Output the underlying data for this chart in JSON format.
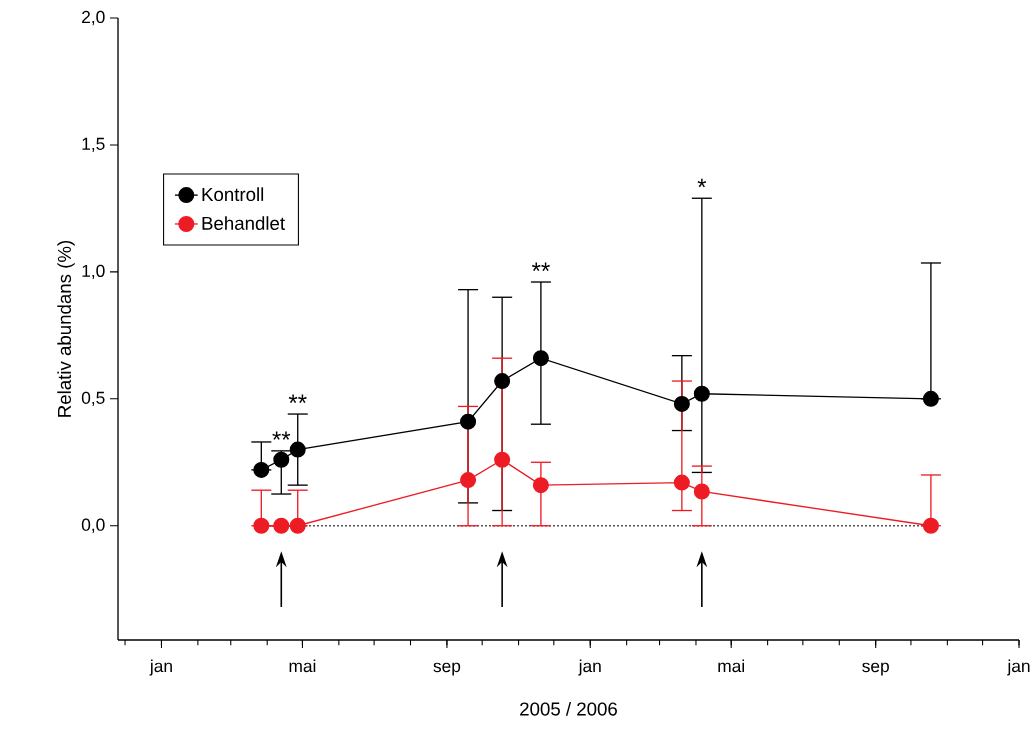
{
  "chart_data": {
    "type": "line",
    "xlabel": "2005 / 2006",
    "ylabel": "Relativ abundans (%)",
    "series": [
      {
        "name": "Kontroll",
        "color": "#000000",
        "x": [
          "2005-03-27",
          "2005-04-13",
          "2005-04-27",
          "2005-09-19",
          "2005-10-18",
          "2005-11-20",
          "2006-03-20",
          "2006-04-06",
          "2006-10-18"
        ],
        "values": [
          0.22,
          0.26,
          0.3,
          0.41,
          0.57,
          0.66,
          0.48,
          0.52,
          0.5
        ],
        "errors": [
          [
            0.22,
            0.33
          ],
          [
            0.125,
            0.295
          ],
          [
            0.16,
            0.44
          ],
          [
            0.09,
            0.93
          ],
          [
            0.06,
            0.9
          ],
          [
            0.4,
            0.96
          ],
          [
            0.375,
            0.67
          ],
          [
            0.21,
            1.29
          ],
          [
            0.5,
            1.035
          ]
        ]
      },
      {
        "name": "Behandlet",
        "color": "#ed1c24",
        "x": [
          "2005-03-27",
          "2005-04-13",
          "2005-04-27",
          "2005-09-19",
          "2005-10-18",
          "2005-11-20",
          "2006-03-20",
          "2006-04-06",
          "2006-10-18"
        ],
        "values": [
          0,
          0,
          0,
          0.18,
          0.26,
          0.16,
          0.17,
          0.135,
          0
        ],
        "errors": [
          [
            0,
            0.14
          ],
          null,
          [
            0,
            0.14
          ],
          [
            0,
            0.47
          ],
          [
            0,
            0.66
          ],
          [
            0,
            0.25
          ],
          [
            0.06,
            0.57
          ],
          [
            0,
            0.235
          ],
          [
            0,
            0.2
          ]
        ]
      }
    ],
    "xlim": [
      "2004-11-25",
      "2007-01-01"
    ],
    "xticks": [
      {
        "value": "2005-01-01",
        "label": "jan"
      },
      {
        "value": "2005-05-01",
        "label": "mai"
      },
      {
        "value": "2005-09-01",
        "label": "sep"
      },
      {
        "value": "2006-01-01",
        "label": "jan"
      },
      {
        "value": "2006-05-01",
        "label": "mai"
      },
      {
        "value": "2006-09-01",
        "label": "sep"
      },
      {
        "value": "2007-01-01",
        "label": "jan"
      }
    ],
    "ylim": [
      -0.45,
      2.0
    ],
    "yticks": [
      {
        "value": 0,
        "label": "0,0"
      },
      {
        "value": 0.5,
        "label": "0,5"
      },
      {
        "value": 1.0,
        "label": "1,0"
      },
      {
        "value": 1.5,
        "label": "1,5"
      },
      {
        "value": 2.0,
        "label": "2,0"
      }
    ],
    "ref_lines": [
      {
        "axis": "y",
        "value": 0,
        "line_style": "dotted",
        "color": "#000000"
      }
    ],
    "annotations": [
      {
        "text": "**",
        "x": "2005-04-13",
        "y": 0.295
      },
      {
        "text": "**",
        "x": "2005-04-27",
        "y": 0.44
      },
      {
        "text": "**",
        "x": "2005-11-20",
        "y": 0.96
      },
      {
        "text": "*",
        "x": "2006-04-06",
        "y": 1.29
      }
    ],
    "marker": "circle",
    "line_style": "solid",
    "legend": "top left",
    "grid": false
  }
}
